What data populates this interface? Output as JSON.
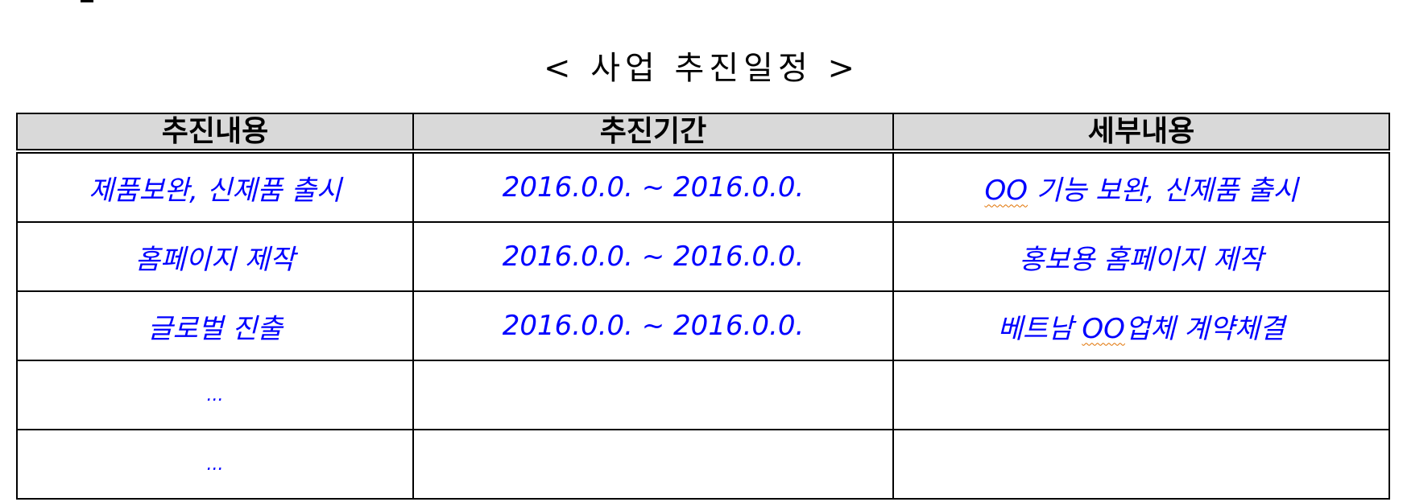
{
  "document": {
    "title": "< 사업 추진일정 >"
  },
  "schedule_table": {
    "headers": [
      "추진내용",
      "추진기간",
      "세부내용"
    ],
    "rows": [
      {
        "content": "제품보완, 신제품 출시",
        "period": "2016.0.0. ~ 2016.0.0.",
        "detail_prefix": "OO",
        "detail_rest": " 기능 보완, 신제품 출시"
      },
      {
        "content": "홈페이지 제작",
        "period": "2016.0.0. ~ 2016.0.0.",
        "detail_prefix": "",
        "detail_rest": "홍보용 홈페이지 제작"
      },
      {
        "content": "글로벌 진출",
        "period": "2016.0.0. ~ 2016.0.0.",
        "detail_prefix": "베트남 ",
        "detail_squiggle": "OO",
        "detail_rest": "업체 계약체결"
      },
      {
        "content": "...",
        "period": "",
        "detail_prefix": "",
        "detail_rest": ""
      },
      {
        "content": "...",
        "period": "",
        "detail_prefix": "",
        "detail_rest": ""
      }
    ]
  },
  "colors": {
    "header_bg": "#d9d9d9",
    "body_text": "#0000ff",
    "border": "#000000",
    "spellcheck_underline": "#e07000"
  }
}
